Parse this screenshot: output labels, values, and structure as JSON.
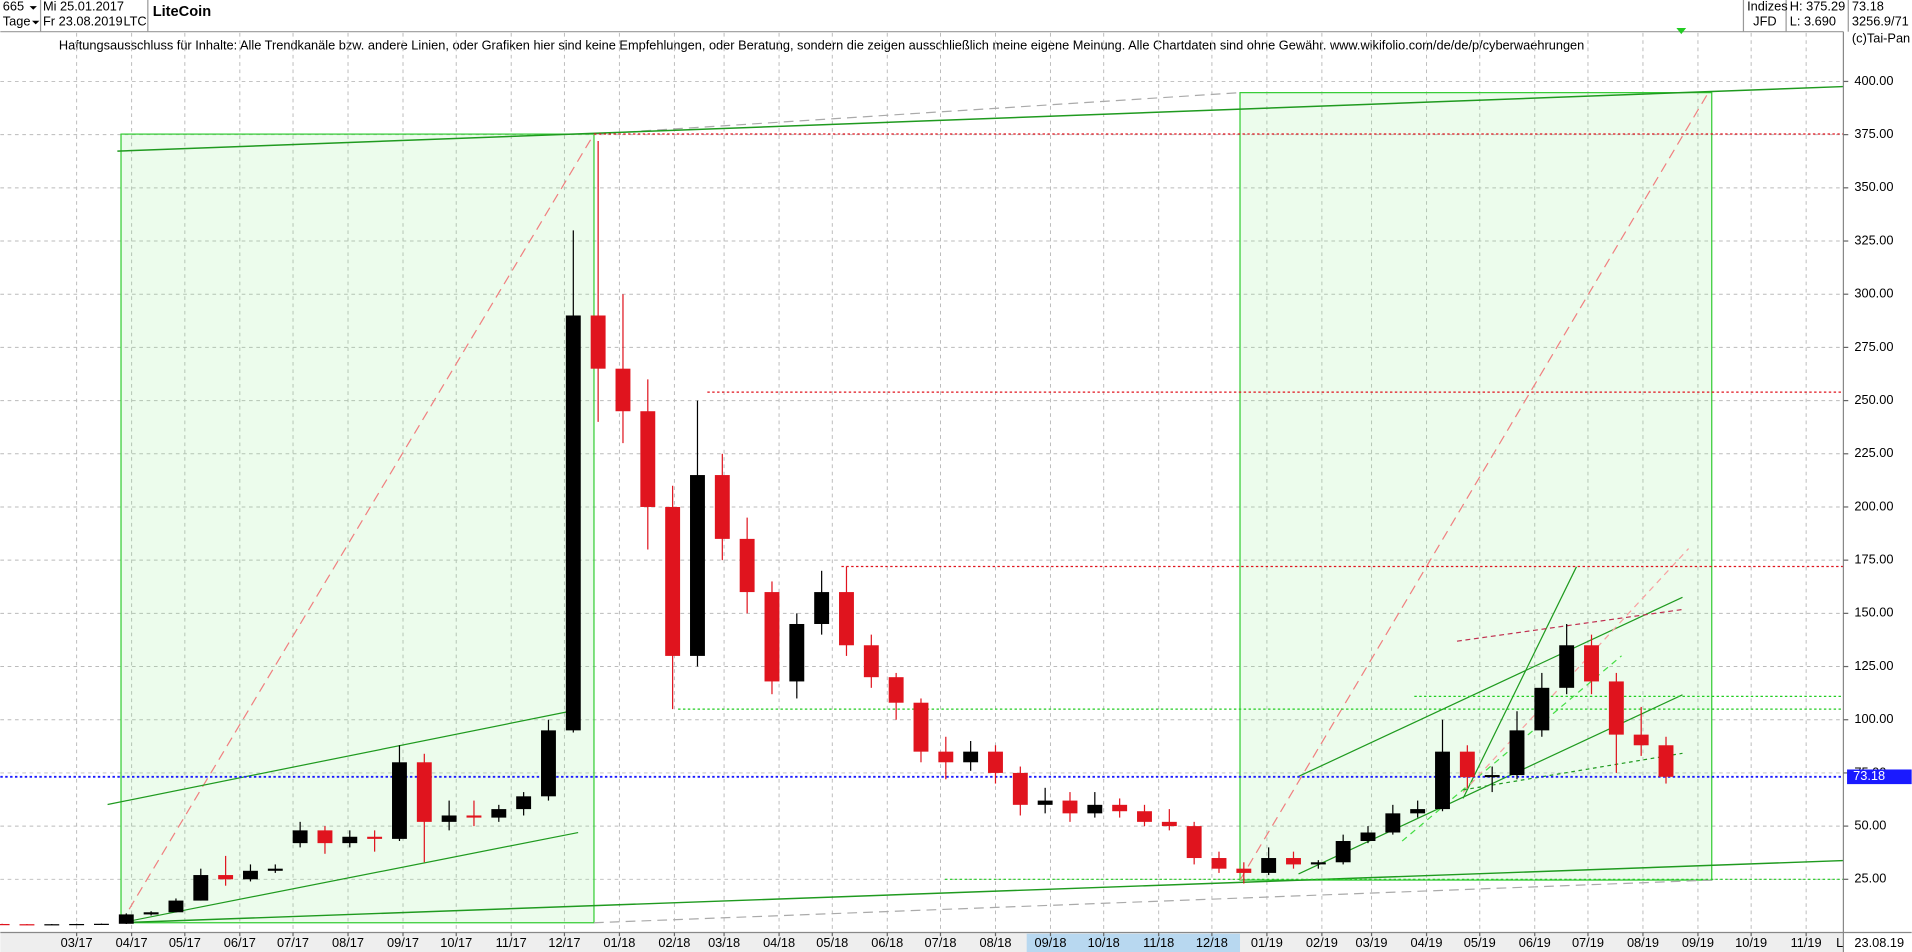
{
  "header": {
    "count": "665",
    "start_date": "Mi 25.01.2017",
    "period": "Tage",
    "end_date": "Fr 23.08.2019",
    "symbol": "LTC",
    "market": "Indizes",
    "broker": "JFD",
    "high": "H: 375.29",
    "low": "L: 3.690",
    "last": "73.18",
    "volume": "3256.9/71",
    "copyright": "(c)Tai-Pan",
    "axis_date": "23.08.19",
    "axis_scale": "L"
  },
  "chart_data": {
    "type": "candlestick",
    "title": "LiteCoin",
    "subtitle": "Haftungsausschluss für Inhalte: Alle Trendkanäle bzw. andere Linien, oder Grafiken hier sind keine Empfehlungen, oder Beratung, sondern die zeigen ausschließlich meine eigene Meinung. Alle Chartdaten sind ohne Gewähr.  www.wikifolio.com/de/de/p/cyberwaehrungen",
    "up_color": "#000000",
    "down_color": "#e0141e",
    "grid": true,
    "xlim": [
      "2017-01-17",
      "2019-11-22"
    ],
    "ylim": [
      0,
      412.5
    ],
    "yticks": [
      {
        "value": 25,
        "label": "25.00"
      },
      {
        "value": 50,
        "label": "50.00"
      },
      {
        "value": 75,
        "label": "75.00"
      },
      {
        "value": 100,
        "label": "100.00"
      },
      {
        "value": 125,
        "label": "125.00"
      },
      {
        "value": 150,
        "label": "150.00"
      },
      {
        "value": 175,
        "label": "175.00"
      },
      {
        "value": 200,
        "label": "200.00"
      },
      {
        "value": 225,
        "label": "225.00"
      },
      {
        "value": 250,
        "label": "250.00"
      },
      {
        "value": 275,
        "label": "275.00"
      },
      {
        "value": 300,
        "label": "300.00"
      },
      {
        "value": 325,
        "label": "325.00"
      },
      {
        "value": 350,
        "label": "350.00"
      },
      {
        "value": 375,
        "label": "375.00"
      },
      {
        "value": 400,
        "label": "400.00"
      }
    ],
    "xticks": [
      {
        "value": "2017-03-01",
        "label": "03/17"
      },
      {
        "value": "2017-04-01",
        "label": "04/17"
      },
      {
        "value": "2017-05-01",
        "label": "05/17"
      },
      {
        "value": "2017-06-01",
        "label": "06/17"
      },
      {
        "value": "2017-07-01",
        "label": "07/17"
      },
      {
        "value": "2017-08-01",
        "label": "08/17"
      },
      {
        "value": "2017-09-01",
        "label": "09/17"
      },
      {
        "value": "2017-10-01",
        "label": "10/17"
      },
      {
        "value": "2017-11-01",
        "label": "11/17"
      },
      {
        "value": "2017-12-01",
        "label": "12/17"
      },
      {
        "value": "2018-01-01",
        "label": "01/18"
      },
      {
        "value": "2018-02-01",
        "label": "02/18"
      },
      {
        "value": "2018-03-01",
        "label": "03/18"
      },
      {
        "value": "2018-04-01",
        "label": "04/18"
      },
      {
        "value": "2018-05-01",
        "label": "05/18"
      },
      {
        "value": "2018-06-01",
        "label": "06/18"
      },
      {
        "value": "2018-07-01",
        "label": "07/18"
      },
      {
        "value": "2018-08-01",
        "label": "08/18"
      },
      {
        "value": "2018-09-01",
        "label": "09/18"
      },
      {
        "value": "2018-10-01",
        "label": "10/18"
      },
      {
        "value": "2018-11-01",
        "label": "11/18"
      },
      {
        "value": "2018-12-01",
        "label": "12/18"
      },
      {
        "value": "2019-01-01",
        "label": "01/19"
      },
      {
        "value": "2019-02-01",
        "label": "02/19"
      },
      {
        "value": "2019-03-01",
        "label": "03/19"
      },
      {
        "value": "2019-04-01",
        "label": "04/19"
      },
      {
        "value": "2019-05-01",
        "label": "05/19"
      },
      {
        "value": "2019-06-01",
        "label": "06/19"
      },
      {
        "value": "2019-07-01",
        "label": "07/19"
      },
      {
        "value": "2019-08-01",
        "label": "08/19"
      },
      {
        "value": "2019-09-01",
        "label": "09/19"
      },
      {
        "value": "2019-10-01",
        "label": "10/19"
      },
      {
        "value": "2019-11-01",
        "label": "11/19"
      }
    ],
    "x": [
      "2017-01-18",
      "2017-02-01",
      "2017-02-15",
      "2017-03-01",
      "2017-03-15",
      "2017-03-29",
      "2017-04-12",
      "2017-04-26",
      "2017-05-10",
      "2017-05-24",
      "2017-06-07",
      "2017-06-21",
      "2017-07-05",
      "2017-07-19",
      "2017-08-02",
      "2017-08-16",
      "2017-08-30",
      "2017-09-13",
      "2017-09-27",
      "2017-10-11",
      "2017-10-25",
      "2017-11-08",
      "2017-11-22",
      "2017-12-06",
      "2017-12-20",
      "2018-01-03",
      "2018-01-17",
      "2018-01-31",
      "2018-02-14",
      "2018-02-28",
      "2018-03-14",
      "2018-03-28",
      "2018-04-11",
      "2018-04-25",
      "2018-05-09",
      "2018-05-23",
      "2018-06-06",
      "2018-06-20",
      "2018-07-04",
      "2018-07-18",
      "2018-08-01",
      "2018-08-15",
      "2018-08-29",
      "2018-09-12",
      "2018-09-26",
      "2018-10-10",
      "2018-10-24",
      "2018-11-07",
      "2018-11-21",
      "2018-12-05",
      "2018-12-19",
      "2019-01-02",
      "2019-01-16",
      "2019-01-30",
      "2019-02-13",
      "2019-02-27",
      "2019-03-13",
      "2019-03-27",
      "2019-04-10",
      "2019-04-24",
      "2019-05-08",
      "2019-05-22",
      "2019-06-05",
      "2019-06-19",
      "2019-07-03",
      "2019-07-17",
      "2019-07-31",
      "2019-08-14"
    ],
    "open": [
      4,
      3.9,
      3.8,
      3.9,
      4,
      4.1,
      8.5,
      9.5,
      15,
      27,
      25,
      29,
      42,
      48,
      42,
      45,
      44,
      80,
      52,
      55,
      54,
      58,
      64,
      95,
      290,
      265,
      245,
      200,
      130,
      215,
      185,
      160,
      118,
      145,
      160,
      135,
      120,
      108,
      85,
      80,
      85,
      75,
      60,
      62,
      56,
      60,
      57,
      52,
      50,
      35,
      30,
      28,
      35,
      32,
      33,
      43,
      47,
      56,
      58,
      85,
      73,
      74,
      95,
      115,
      135,
      118,
      93,
      88
    ],
    "high": [
      4.1,
      4,
      4,
      4.1,
      4.2,
      9,
      10,
      16,
      30,
      36,
      32,
      32,
      52,
      50,
      48,
      48,
      88,
      84,
      62,
      62,
      60,
      66,
      100,
      330,
      372,
      300,
      260,
      210,
      250,
      225,
      195,
      165,
      150,
      170,
      172,
      140,
      122,
      110,
      92,
      90,
      88,
      78,
      68,
      66,
      66,
      63,
      60,
      58,
      52,
      38,
      33,
      40,
      38,
      34,
      46,
      50,
      60,
      62,
      100,
      88,
      78,
      104,
      122,
      145,
      140,
      122,
      106,
      92
    ],
    "low": [
      3.8,
      3.7,
      3.7,
      3.8,
      3.8,
      4,
      8,
      9.4,
      15,
      22,
      24,
      28,
      40,
      37,
      40,
      38,
      43,
      33,
      48,
      50,
      52,
      55,
      62,
      94,
      240,
      230,
      180,
      105,
      125,
      175,
      150,
      112,
      110,
      140,
      130,
      115,
      100,
      80,
      72,
      76,
      70,
      55,
      56,
      52,
      54,
      54,
      50,
      48,
      32,
      28,
      23,
      27,
      30,
      30,
      32,
      42,
      46,
      54,
      57,
      68,
      66,
      72,
      92,
      112,
      112,
      75,
      83,
      70
    ],
    "close": [
      3.9,
      3.8,
      3.9,
      4,
      4.1,
      8.5,
      9.5,
      15,
      27,
      25,
      29,
      30,
      48,
      42,
      45,
      44,
      80,
      52,
      55,
      54,
      58,
      64,
      95,
      290,
      265,
      245,
      200,
      130,
      215,
      185,
      160,
      118,
      145,
      160,
      135,
      120,
      108,
      85,
      80,
      85,
      75,
      60,
      62,
      56,
      60,
      57,
      52,
      50,
      35,
      30,
      28,
      35,
      32,
      33,
      43,
      47,
      56,
      58,
      85,
      73,
      74,
      95,
      115,
      135,
      118,
      93,
      88,
      73.18
    ],
    "levels": [
      {
        "value": 375.29,
        "color": "#e0141e"
      },
      {
        "value": 254,
        "color": "#e0141e"
      },
      {
        "value": 172,
        "color": "#e0141e"
      },
      {
        "value": 111,
        "color": "#22cc22"
      },
      {
        "value": 105,
        "color": "#22cc22"
      },
      {
        "value": 25,
        "color": "#22cc22"
      }
    ],
    "last_color": "#1a1aff"
  }
}
